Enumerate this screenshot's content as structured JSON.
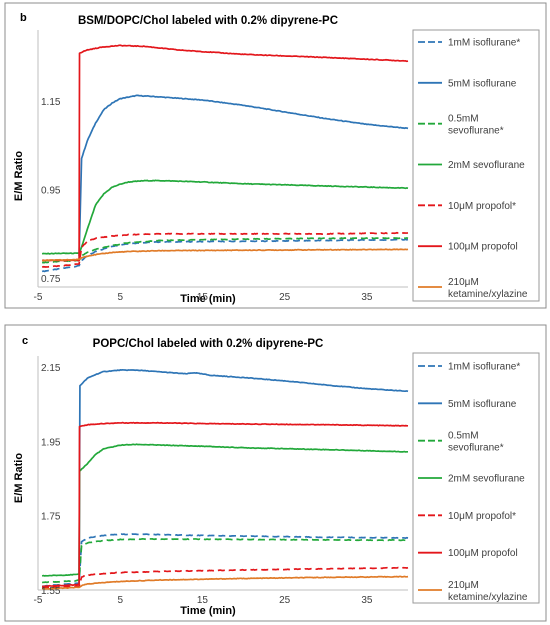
{
  "colors": {
    "blue": "#2E75B6",
    "green": "#22A83A",
    "red": "#E3161B",
    "orange": "#E07B28",
    "axis": "#bfbfbf",
    "frame": "#8c8c8c"
  },
  "chart_data": [
    {
      "type": "line",
      "panel_label": "b",
      "title": "BSM/DOPC/Chol labeled with 0.2% dipyrene-PC",
      "xlabel": "Time (min)",
      "ylabel": "E/M Ratio",
      "xlim": [
        -5,
        40
      ],
      "ylim": [
        0.73,
        1.31
      ],
      "x_ticks": [
        -5,
        5,
        15,
        25,
        35
      ],
      "y_ticks": [
        0.75,
        0.95,
        1.15
      ],
      "x_tick_labels": [
        "-5",
        "5",
        "15",
        "25",
        "35"
      ],
      "y_tick_labels": [
        "0.75",
        "0.95",
        "1.15"
      ],
      "grid": false,
      "legend_position": "right",
      "series": [
        {
          "name": "1mM isoflurane*",
          "color": "blue",
          "dash": true,
          "x": [
            -4.5,
            -2,
            0,
            0.3,
            1,
            2,
            4,
            6,
            10,
            20,
            30,
            40
          ],
          "y": [
            0.765,
            0.772,
            0.778,
            0.79,
            0.8,
            0.81,
            0.822,
            0.828,
            0.832,
            0.833,
            0.835,
            0.837
          ]
        },
        {
          "name": "5mM isoflurane",
          "color": "blue",
          "dash": false,
          "x": [
            0,
            0.3,
            1,
            2,
            3,
            4,
            5,
            7,
            9,
            15,
            20,
            25,
            30,
            35,
            40
          ],
          "y": [
            0.8,
            1.02,
            1.06,
            1.1,
            1.13,
            1.145,
            1.155,
            1.162,
            1.16,
            1.152,
            1.14,
            1.125,
            1.11,
            1.097,
            1.088
          ]
        },
        {
          "name": "0.5mM sevoflurane*",
          "color": "green",
          "dash": true,
          "x": [
            -4.5,
            -2,
            0,
            0.3,
            1,
            2,
            4,
            6,
            10,
            20,
            30,
            40
          ],
          "y": [
            0.785,
            0.788,
            0.79,
            0.8,
            0.808,
            0.815,
            0.823,
            0.83,
            0.835,
            0.838,
            0.84,
            0.84
          ]
        },
        {
          "name": "2mM sevoflurane",
          "color": "green",
          "dash": false,
          "x": [
            -4.5,
            -2,
            0,
            0.3,
            1,
            2,
            3,
            4,
            5,
            6,
            8,
            10,
            15,
            20,
            30,
            40
          ],
          "y": [
            0.805,
            0.806,
            0.806,
            0.82,
            0.86,
            0.915,
            0.94,
            0.955,
            0.962,
            0.967,
            0.97,
            0.97,
            0.967,
            0.963,
            0.958,
            0.953
          ]
        },
        {
          "name": "10μM propofol*",
          "color": "red",
          "dash": true,
          "x": [
            -4.5,
            -2,
            0,
            0.3,
            1,
            2,
            4,
            6,
            10,
            20,
            30,
            40
          ],
          "y": [
            0.775,
            0.778,
            0.782,
            0.82,
            0.833,
            0.84,
            0.845,
            0.848,
            0.85,
            0.85,
            0.85,
            0.852
          ]
        },
        {
          "name": "100μM propofol",
          "color": "red",
          "dash": false,
          "x": [
            -4.5,
            -2,
            0,
            0.05,
            1,
            3,
            5,
            8,
            12,
            20,
            30,
            40
          ],
          "y": [
            0.79,
            0.79,
            0.79,
            1.258,
            1.265,
            1.272,
            1.275,
            1.273,
            1.265,
            1.255,
            1.248,
            1.24
          ]
        },
        {
          "name": "210μM ketamine/xylazine",
          "color": "orange",
          "dash": false,
          "x": [
            -4.5,
            -2,
            0,
            0.3,
            1,
            2,
            4,
            6,
            10,
            20,
            30,
            40
          ],
          "y": [
            0.79,
            0.791,
            0.792,
            0.796,
            0.8,
            0.803,
            0.808,
            0.81,
            0.812,
            0.813,
            0.814,
            0.815
          ]
        }
      ]
    },
    {
      "type": "line",
      "panel_label": "c",
      "title": "POPC/Chol labeled with 0.2% dipyrene-PC",
      "xlabel": "Time (min)",
      "ylabel": "E/M Ratio",
      "xlim": [
        -5,
        40
      ],
      "ylim": [
        1.55,
        2.18
      ],
      "x_ticks": [
        -5,
        5,
        15,
        25,
        35
      ],
      "y_ticks": [
        1.55,
        1.75,
        1.95,
        2.15
      ],
      "x_tick_labels": [
        "-5",
        "5",
        "15",
        "25",
        "35"
      ],
      "y_tick_labels": [
        "1.55",
        "1.75",
        "1.95",
        "2.15"
      ],
      "grid": false,
      "legend_position": "right",
      "series": [
        {
          "name": "1mM isoflurane*",
          "color": "blue",
          "dash": true,
          "x": [
            -4.5,
            -2,
            0,
            0.3,
            1,
            3,
            5,
            8,
            12,
            20,
            30,
            40
          ],
          "y": [
            1.56,
            1.565,
            1.568,
            1.68,
            1.69,
            1.697,
            1.7,
            1.7,
            1.698,
            1.695,
            1.692,
            1.69
          ]
        },
        {
          "name": "5mM isoflurane",
          "color": "blue",
          "dash": false,
          "x": [
            0,
            0.1,
            1,
            2,
            3,
            5,
            7,
            10,
            13,
            14,
            16,
            20,
            25,
            30,
            35,
            40
          ],
          "y": [
            1.57,
            2.1,
            2.12,
            2.13,
            2.138,
            2.142,
            2.142,
            2.137,
            2.132,
            2.135,
            2.128,
            2.122,
            2.113,
            2.102,
            2.092,
            2.085
          ]
        },
        {
          "name": "0.5mM sevoflurane*",
          "color": "green",
          "dash": true,
          "x": [
            -4.5,
            -2,
            0,
            0.3,
            1,
            3,
            5,
            8,
            12,
            20,
            30,
            40
          ],
          "y": [
            1.57,
            1.573,
            1.576,
            1.67,
            1.677,
            1.683,
            1.686,
            1.687,
            1.687,
            1.686,
            1.685,
            1.684
          ]
        },
        {
          "name": "2mM sevoflurane",
          "color": "green",
          "dash": false,
          "x": [
            -4.5,
            -2,
            0,
            0.05,
            1,
            2,
            3,
            5,
            7,
            10,
            15,
            20,
            30,
            40
          ],
          "y": [
            1.588,
            1.59,
            1.592,
            1.87,
            1.89,
            1.915,
            1.93,
            1.94,
            1.942,
            1.94,
            1.937,
            1.933,
            1.928,
            1.922
          ]
        },
        {
          "name": "10μM propofol*",
          "color": "red",
          "dash": true,
          "x": [
            -4.5,
            -2,
            0,
            0.3,
            1,
            3,
            5,
            10,
            20,
            30,
            40
          ],
          "y": [
            1.556,
            1.558,
            1.56,
            1.585,
            1.59,
            1.594,
            1.597,
            1.6,
            1.604,
            1.607,
            1.61
          ]
        },
        {
          "name": "100μM propofol",
          "color": "red",
          "dash": false,
          "x": [
            -4.5,
            -2,
            0,
            0.05,
            1,
            3,
            5,
            10,
            15,
            20,
            30,
            40
          ],
          "y": [
            1.56,
            1.562,
            1.565,
            1.99,
            1.995,
            1.998,
            2.0,
            2.0,
            1.998,
            1.997,
            1.995,
            1.992
          ]
        },
        {
          "name": "210μM ketamine/xylazine",
          "color": "orange",
          "dash": false,
          "x": [
            -4.5,
            -2,
            0,
            0.3,
            1,
            3,
            5,
            10,
            20,
            30,
            40
          ],
          "y": [
            1.553,
            1.555,
            1.557,
            1.562,
            1.566,
            1.57,
            1.573,
            1.577,
            1.581,
            1.584,
            1.586
          ]
        }
      ]
    }
  ]
}
